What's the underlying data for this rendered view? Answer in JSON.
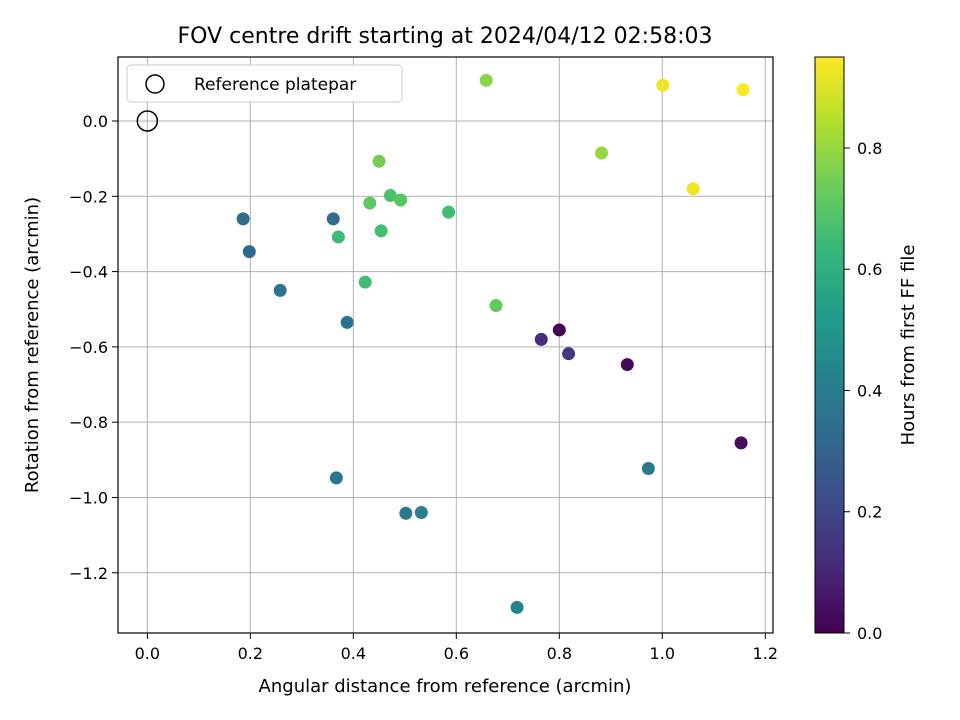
{
  "chart_data": {
    "type": "scatter",
    "title": "FOV centre drift starting at 2024/04/12 02:58:03",
    "xlabel": "Angular distance from reference (arcmin)",
    "ylabel": "Rotation from reference (arcmin)",
    "xlim": [
      -0.057,
      1.215
    ],
    "ylim": [
      -1.36,
      0.17
    ],
    "xticks": [
      0.0,
      0.2,
      0.4,
      0.6,
      0.8,
      1.0,
      1.2
    ],
    "xtick_labels": [
      "0.0",
      "0.2",
      "0.4",
      "0.6",
      "0.8",
      "1.0",
      "1.2"
    ],
    "yticks": [
      0.0,
      -0.2,
      -0.4,
      -0.6,
      -0.8,
      -1.0,
      -1.2
    ],
    "ytick_labels": [
      "0.0",
      "−0.2",
      "−0.4",
      "−0.6",
      "−0.8",
      "−1.0",
      "−1.2"
    ],
    "grid": true,
    "legend": {
      "position": "top-left",
      "entries": [
        "Reference platepar"
      ]
    },
    "reference_point": {
      "x": 0.0,
      "y": 0.0,
      "label": "Reference platepar"
    },
    "colorbar": {
      "label": "Hours from first FF file",
      "colormap": "viridis",
      "range": [
        0.0,
        0.95
      ],
      "ticks": [
        0.0,
        0.2,
        0.4,
        0.6,
        0.8
      ],
      "tick_labels": [
        "0.0",
        "0.2",
        "0.4",
        "0.6",
        "0.8"
      ]
    },
    "points": [
      {
        "x": 0.8,
        "y": -0.555,
        "hours": 0.0
      },
      {
        "x": 0.932,
        "y": -0.647,
        "hours": 0.02
      },
      {
        "x": 1.153,
        "y": -0.855,
        "hours": 0.03
      },
      {
        "x": 0.765,
        "y": -0.58,
        "hours": 0.12
      },
      {
        "x": 0.818,
        "y": -0.618,
        "hours": 0.15
      },
      {
        "x": 0.718,
        "y": -1.292,
        "hours": 0.42
      },
      {
        "x": 0.532,
        "y": -1.04,
        "hours": 0.4
      },
      {
        "x": 0.502,
        "y": -1.042,
        "hours": 0.39
      },
      {
        "x": 0.973,
        "y": -0.923,
        "hours": 0.38
      },
      {
        "x": 0.367,
        "y": -0.948,
        "hours": 0.37
      },
      {
        "x": 0.388,
        "y": -0.535,
        "hours": 0.35
      },
      {
        "x": 0.258,
        "y": -0.45,
        "hours": 0.37
      },
      {
        "x": 0.198,
        "y": -0.347,
        "hours": 0.33
      },
      {
        "x": 0.186,
        "y": -0.26,
        "hours": 0.34
      },
      {
        "x": 0.361,
        "y": -0.26,
        "hours": 0.34
      },
      {
        "x": 0.371,
        "y": -0.308,
        "hours": 0.65
      },
      {
        "x": 0.423,
        "y": -0.428,
        "hours": 0.66
      },
      {
        "x": 0.432,
        "y": -0.218,
        "hours": 0.71
      },
      {
        "x": 0.454,
        "y": -0.292,
        "hours": 0.66
      },
      {
        "x": 0.472,
        "y": -0.198,
        "hours": 0.68
      },
      {
        "x": 0.492,
        "y": -0.21,
        "hours": 0.7
      },
      {
        "x": 0.45,
        "y": -0.107,
        "hours": 0.75
      },
      {
        "x": 0.585,
        "y": -0.242,
        "hours": 0.66
      },
      {
        "x": 0.677,
        "y": -0.49,
        "hours": 0.72
      },
      {
        "x": 0.658,
        "y": 0.108,
        "hours": 0.78
      },
      {
        "x": 0.882,
        "y": -0.085,
        "hours": 0.8
      },
      {
        "x": 1.001,
        "y": 0.095,
        "hours": 0.93
      },
      {
        "x": 1.157,
        "y": 0.083,
        "hours": 0.95
      },
      {
        "x": 1.06,
        "y": -0.18,
        "hours": 0.93
      }
    ]
  }
}
